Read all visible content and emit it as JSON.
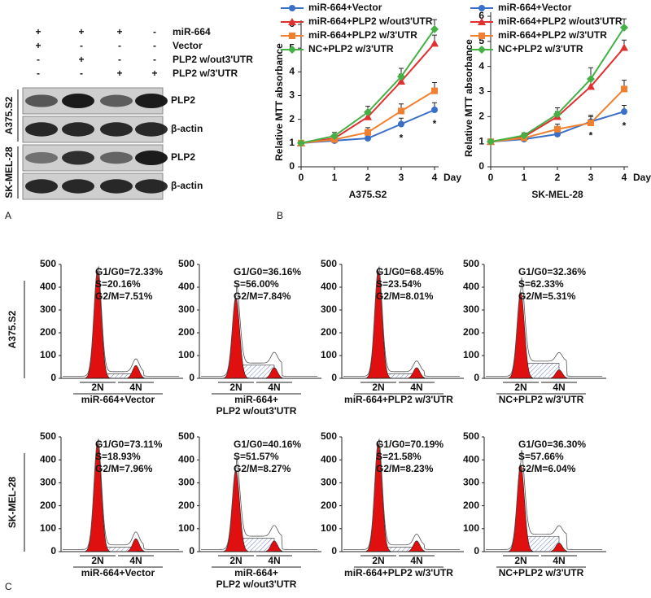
{
  "panel_labels": [
    "A",
    "B",
    "C"
  ],
  "blot": {
    "conditions": [
      {
        "label": "miR-664",
        "signs": [
          "+",
          "+",
          "+",
          "-"
        ]
      },
      {
        "label": "Vector",
        "signs": [
          "+",
          "-",
          "-",
          "-"
        ]
      },
      {
        "label": "PLP2 w/out3'UTR",
        "signs": [
          "-",
          "+",
          "-",
          "-"
        ]
      },
      {
        "label": "PLP2 w/3'UTR",
        "signs": [
          "-",
          "-",
          "+",
          "+"
        ]
      }
    ],
    "groups": [
      {
        "cell": "A375.S2",
        "bands": [
          "PLP2",
          "β-actin"
        ]
      },
      {
        "cell": "SK-MEL-28",
        "bands": [
          "PLP2",
          "β-actin"
        ]
      }
    ]
  },
  "chart_data": [
    {
      "type": "line",
      "title": "A375.S2",
      "x_label": "Day",
      "y_label": "Relative MTT absorbance",
      "x": [
        0,
        1,
        2,
        3,
        4
      ],
      "xlim": [
        0,
        4
      ],
      "xticks": [
        0,
        1,
        2,
        3,
        4
      ],
      "ylim": [
        0,
        6
      ],
      "yticks": [
        0,
        1,
        2,
        3,
        4,
        5,
        6
      ],
      "series": [
        {
          "name": "miR-664+Vector",
          "color": "#3a6fc8",
          "marker": "circle",
          "values": [
            1,
            1.1,
            1.2,
            1.8,
            2.4
          ],
          "errors": [
            0,
            0.05,
            0.2,
            0.25,
            0.3
          ]
        },
        {
          "name": "miR-664+PLP2 w/out3'UTR",
          "color": "#e03030",
          "marker": "triangle",
          "values": [
            1,
            1.2,
            2.1,
            3.6,
            5.2
          ],
          "errors": [
            0,
            0.1,
            0.2,
            0.3,
            0.35
          ]
        },
        {
          "name": "miR-664+PLP2 w/3'UTR",
          "color": "#f08030",
          "marker": "square",
          "values": [
            1,
            1.15,
            1.45,
            2.35,
            3.2
          ],
          "errors": [
            0,
            0.1,
            0.2,
            0.3,
            0.35
          ]
        },
        {
          "name": "NC+PLP2 w/3'UTR",
          "color": "#45b045",
          "marker": "diamond",
          "values": [
            1,
            1.3,
            2.3,
            3.8,
            5.8
          ],
          "errors": [
            0,
            0.15,
            0.25,
            0.35,
            0.4
          ]
        }
      ],
      "annotations": [
        {
          "x": 3,
          "text": "*"
        },
        {
          "x": 4,
          "text": "*"
        }
      ]
    },
    {
      "type": "line",
      "title": "SK-MEL-28",
      "x_label": "Day",
      "y_label": "Relative MTT absorbance",
      "x": [
        0,
        1,
        2,
        3,
        4
      ],
      "xlim": [
        0,
        4
      ],
      "xticks": [
        0,
        1,
        2,
        3,
        4
      ],
      "ylim": [
        0,
        6
      ],
      "yticks": [
        0,
        1,
        2,
        3,
        4,
        5,
        6
      ],
      "series": [
        {
          "name": "miR-664+Vector",
          "color": "#3a6fc8",
          "marker": "circle",
          "values": [
            1,
            1.1,
            1.3,
            1.8,
            2.2
          ],
          "errors": [
            0,
            0.05,
            0.2,
            0.25,
            0.25
          ]
        },
        {
          "name": "miR-664+PLP2 w/out3'UTR",
          "color": "#e03030",
          "marker": "triangle",
          "values": [
            1,
            1.2,
            2.0,
            3.2,
            4.75
          ],
          "errors": [
            0,
            0.1,
            0.2,
            0.35,
            0.3
          ]
        },
        {
          "name": "miR-664+PLP2 w/3'UTR",
          "color": "#f08030",
          "marker": "square",
          "values": [
            1,
            1.15,
            1.5,
            1.75,
            3.1
          ],
          "errors": [
            0,
            0.1,
            0.2,
            0.25,
            0.35
          ]
        },
        {
          "name": "NC+PLP2 w/3'UTR",
          "color": "#45b045",
          "marker": "diamond",
          "values": [
            1,
            1.25,
            2.1,
            3.5,
            5.55
          ],
          "errors": [
            0,
            0.1,
            0.25,
            0.45,
            0.35
          ]
        }
      ],
      "annotations": [
        {
          "x": 3,
          "text": "*"
        },
        {
          "x": 4,
          "text": "*"
        }
      ]
    }
  ],
  "flow": {
    "ylim": [
      0,
      500
    ],
    "yticks": [
      0,
      100,
      200,
      300,
      400,
      500
    ],
    "xticks": [
      "2N",
      "4N"
    ],
    "rows": [
      {
        "cell": "A375.S2",
        "panels": [
          {
            "label": [
              "miR-664+Vector"
            ],
            "stats": [
              "G1/G0=72.33%",
              "S=20.16%",
              "G2/M=7.51%"
            ]
          },
          {
            "label": [
              "miR-664+",
              "PLP2 w/out3'UTR"
            ],
            "stats": [
              "G1/G0=36.16%",
              "S=56.00%",
              "G2/M=7.84%"
            ]
          },
          {
            "label": [
              "miR-664+PLP2 w/3'UTR"
            ],
            "stats": [
              "G1/G0=68.45%",
              "S=23.54%",
              "G2/M=8.01%"
            ]
          },
          {
            "label": [
              "NC+PLP2 w/3'UTR"
            ],
            "stats": [
              "G1/G0=32.36%",
              "S=62.33%",
              "G2/M=5.31%"
            ]
          }
        ]
      },
      {
        "cell": "SK-MEL-28",
        "panels": [
          {
            "label": [
              "miR-664+Vector"
            ],
            "stats": [
              "G1/G0=73.11%",
              "S=18.93%",
              "G2/M=7.96%"
            ]
          },
          {
            "label": [
              "miR-664+",
              "PLP2 w/out3'UTR"
            ],
            "stats": [
              "G1/G0=40.16%",
              "S=51.57%",
              "G2/M=8.27%"
            ]
          },
          {
            "label": [
              "miR-664+PLP2 w/3'UTR"
            ],
            "stats": [
              "G1/G0=70.19%",
              "S=21.58%",
              "G2/M=8.23%"
            ]
          },
          {
            "label": [
              "NC+PLP2 w/3'UTR"
            ],
            "stats": [
              "G1/G0=36.30%",
              "S=57.66%",
              "G2/M=6.04%"
            ]
          }
        ]
      }
    ]
  }
}
